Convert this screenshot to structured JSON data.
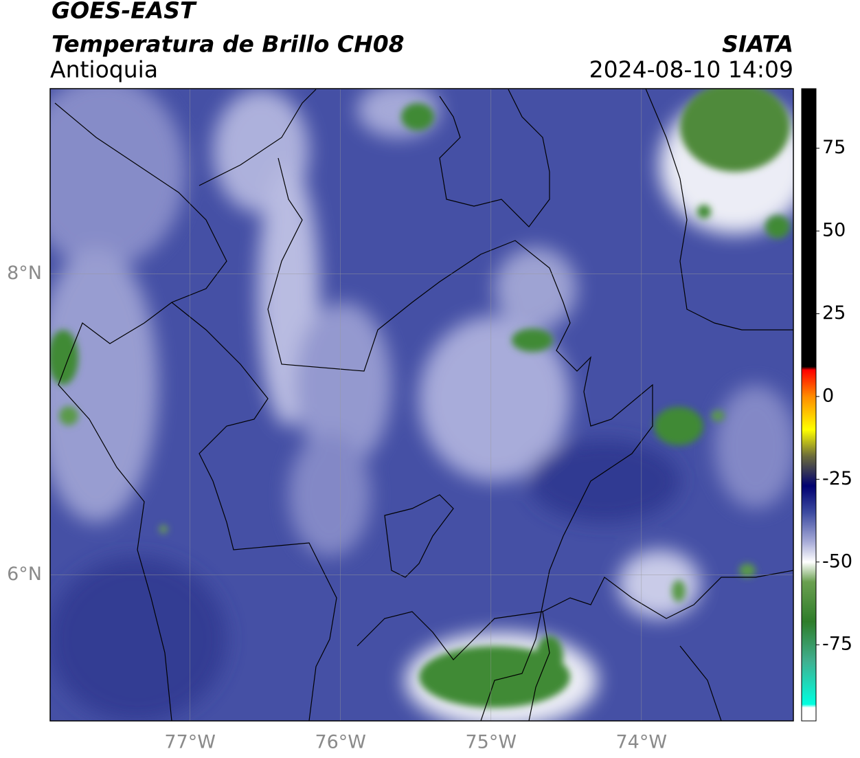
{
  "header": {
    "satellite": "GOES-EAST",
    "product": "Temperatura de Brillo CH08",
    "region": "Antioquia",
    "source": "SIATA",
    "datetime": "2024-08-10 14:09"
  },
  "map": {
    "xlim": [
      -77.93,
      -72.99
    ],
    "ylim": [
      5.03,
      9.23
    ],
    "xticks": [
      {
        "value": -77,
        "label": "77°W"
      },
      {
        "value": -76,
        "label": "76°W"
      },
      {
        "value": -75,
        "label": "75°W"
      },
      {
        "value": -74,
        "label": "74°W"
      }
    ],
    "yticks": [
      {
        "value": 8,
        "label": "8°N"
      },
      {
        "value": 6,
        "label": "6°N"
      }
    ],
    "grid": true
  },
  "colorbar": {
    "lim": [
      -98,
      93
    ],
    "ticks": [
      75,
      50,
      25,
      0,
      -25,
      -50,
      -75
    ],
    "colorscale": [
      {
        "value": 93,
        "color": "#000000"
      },
      {
        "value": 9,
        "color": "#000000"
      },
      {
        "value": 8,
        "color": "#ff0000"
      },
      {
        "value": 0,
        "color": "#ff8c00"
      },
      {
        "value": -10,
        "color": "#ffff00"
      },
      {
        "value": -18,
        "color": "#6b6b3a"
      },
      {
        "value": -27,
        "color": "#000070"
      },
      {
        "value": -35,
        "color": "#3c4aa0"
      },
      {
        "value": -44,
        "color": "#a8acd8"
      },
      {
        "value": -50,
        "color": "#ffffff"
      },
      {
        "value": -56,
        "color": "#6aa050"
      },
      {
        "value": -68,
        "color": "#2f7d2a"
      },
      {
        "value": -80,
        "color": "#40b090"
      },
      {
        "value": -93,
        "color": "#00ffe0"
      },
      {
        "value": -94,
        "color": "#ffffff"
      },
      {
        "value": -98,
        "color": "#ffffff"
      }
    ]
  }
}
